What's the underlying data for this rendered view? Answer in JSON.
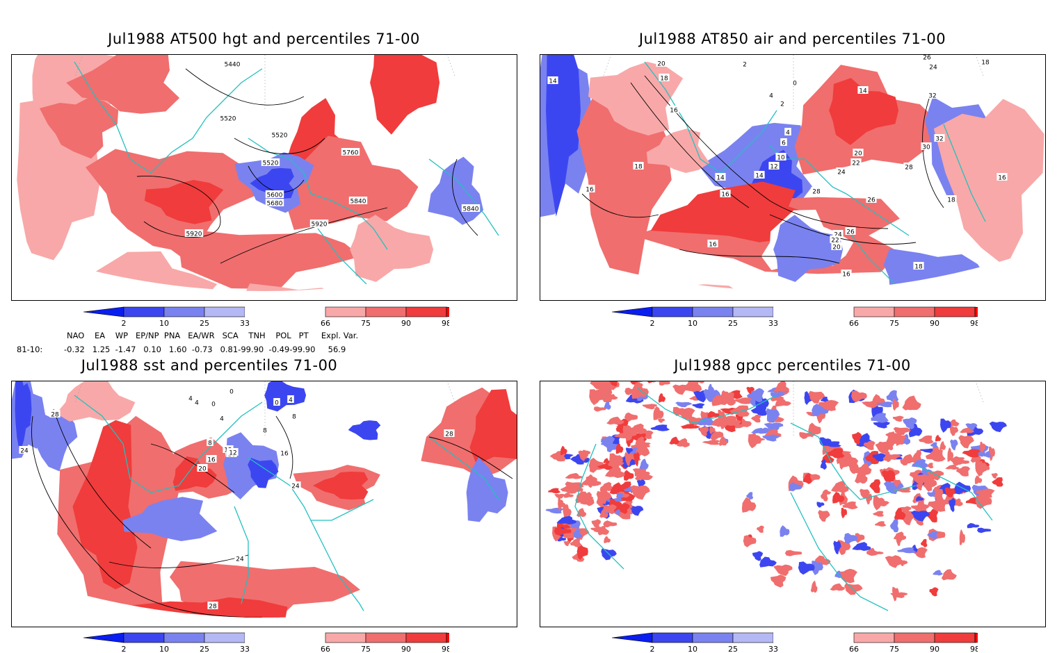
{
  "panels": [
    {
      "id": "p1",
      "title": "Jul1988 AT500 hgt and percentiles 71-00",
      "contour_labels": [
        "5440",
        "5520",
        "5520",
        "5520",
        "5760",
        "5600",
        "5680",
        "5840",
        "5920",
        "5920",
        "5840"
      ]
    },
    {
      "id": "p2",
      "title": "Jul1988 AT850 air and percentiles 71-00",
      "contour_labels": [
        "14",
        "20",
        "18",
        "16",
        "2",
        "0",
        "4",
        "2",
        "4",
        "6",
        "10",
        "12",
        "14",
        "16",
        "18",
        "16",
        "14",
        "20",
        "22",
        "24",
        "26",
        "28",
        "26",
        "24",
        "22",
        "20",
        "16",
        "18",
        "16",
        "18",
        "14",
        "26",
        "24",
        "32",
        "30",
        "28",
        "32",
        "16",
        "18"
      ]
    },
    {
      "id": "p3",
      "title": "Jul1988 sst and percentiles 71-00",
      "contour_labels": [
        "28",
        "24",
        "4",
        "4",
        "0",
        "0",
        "0",
        "4",
        "8",
        "4",
        "8",
        "12",
        "16",
        "20",
        "16",
        "12",
        "8",
        "16",
        "24",
        "24",
        "28",
        "28"
      ]
    },
    {
      "id": "p4",
      "title": "Jul1988 gpcc percentiles 71-00",
      "contour_labels": []
    }
  ],
  "colorbar": {
    "labels": [
      "2",
      "10",
      "25",
      "33",
      "66",
      "75",
      "90",
      "98"
    ],
    "colors": {
      "lt2": "#0a1ef0",
      "b2_10": "#3c46f0",
      "b10_25": "#7a82f0",
      "b25_33": "#b4b8f4",
      "mid": "#ffffff",
      "r66_75": "#f8a8a8",
      "r75_90": "#f06e6e",
      "r90_98": "#f03c3c",
      "gt98": "#ff0000"
    }
  },
  "indices": {
    "header": "NAO    EA    WP   EP/NP  PNA   EA/WR   SCA    TNH    POL   PT     Expl. Var.",
    "row_label": "81-10:",
    "values": "-0.32   1.25  -1.47   0.10   1.60  -0.73   0.81-99.90  -0.49-99.90     56.9"
  },
  "style_colors": {
    "coast": "#22c0c0",
    "grid": "#999999",
    "contour": "#000000"
  }
}
